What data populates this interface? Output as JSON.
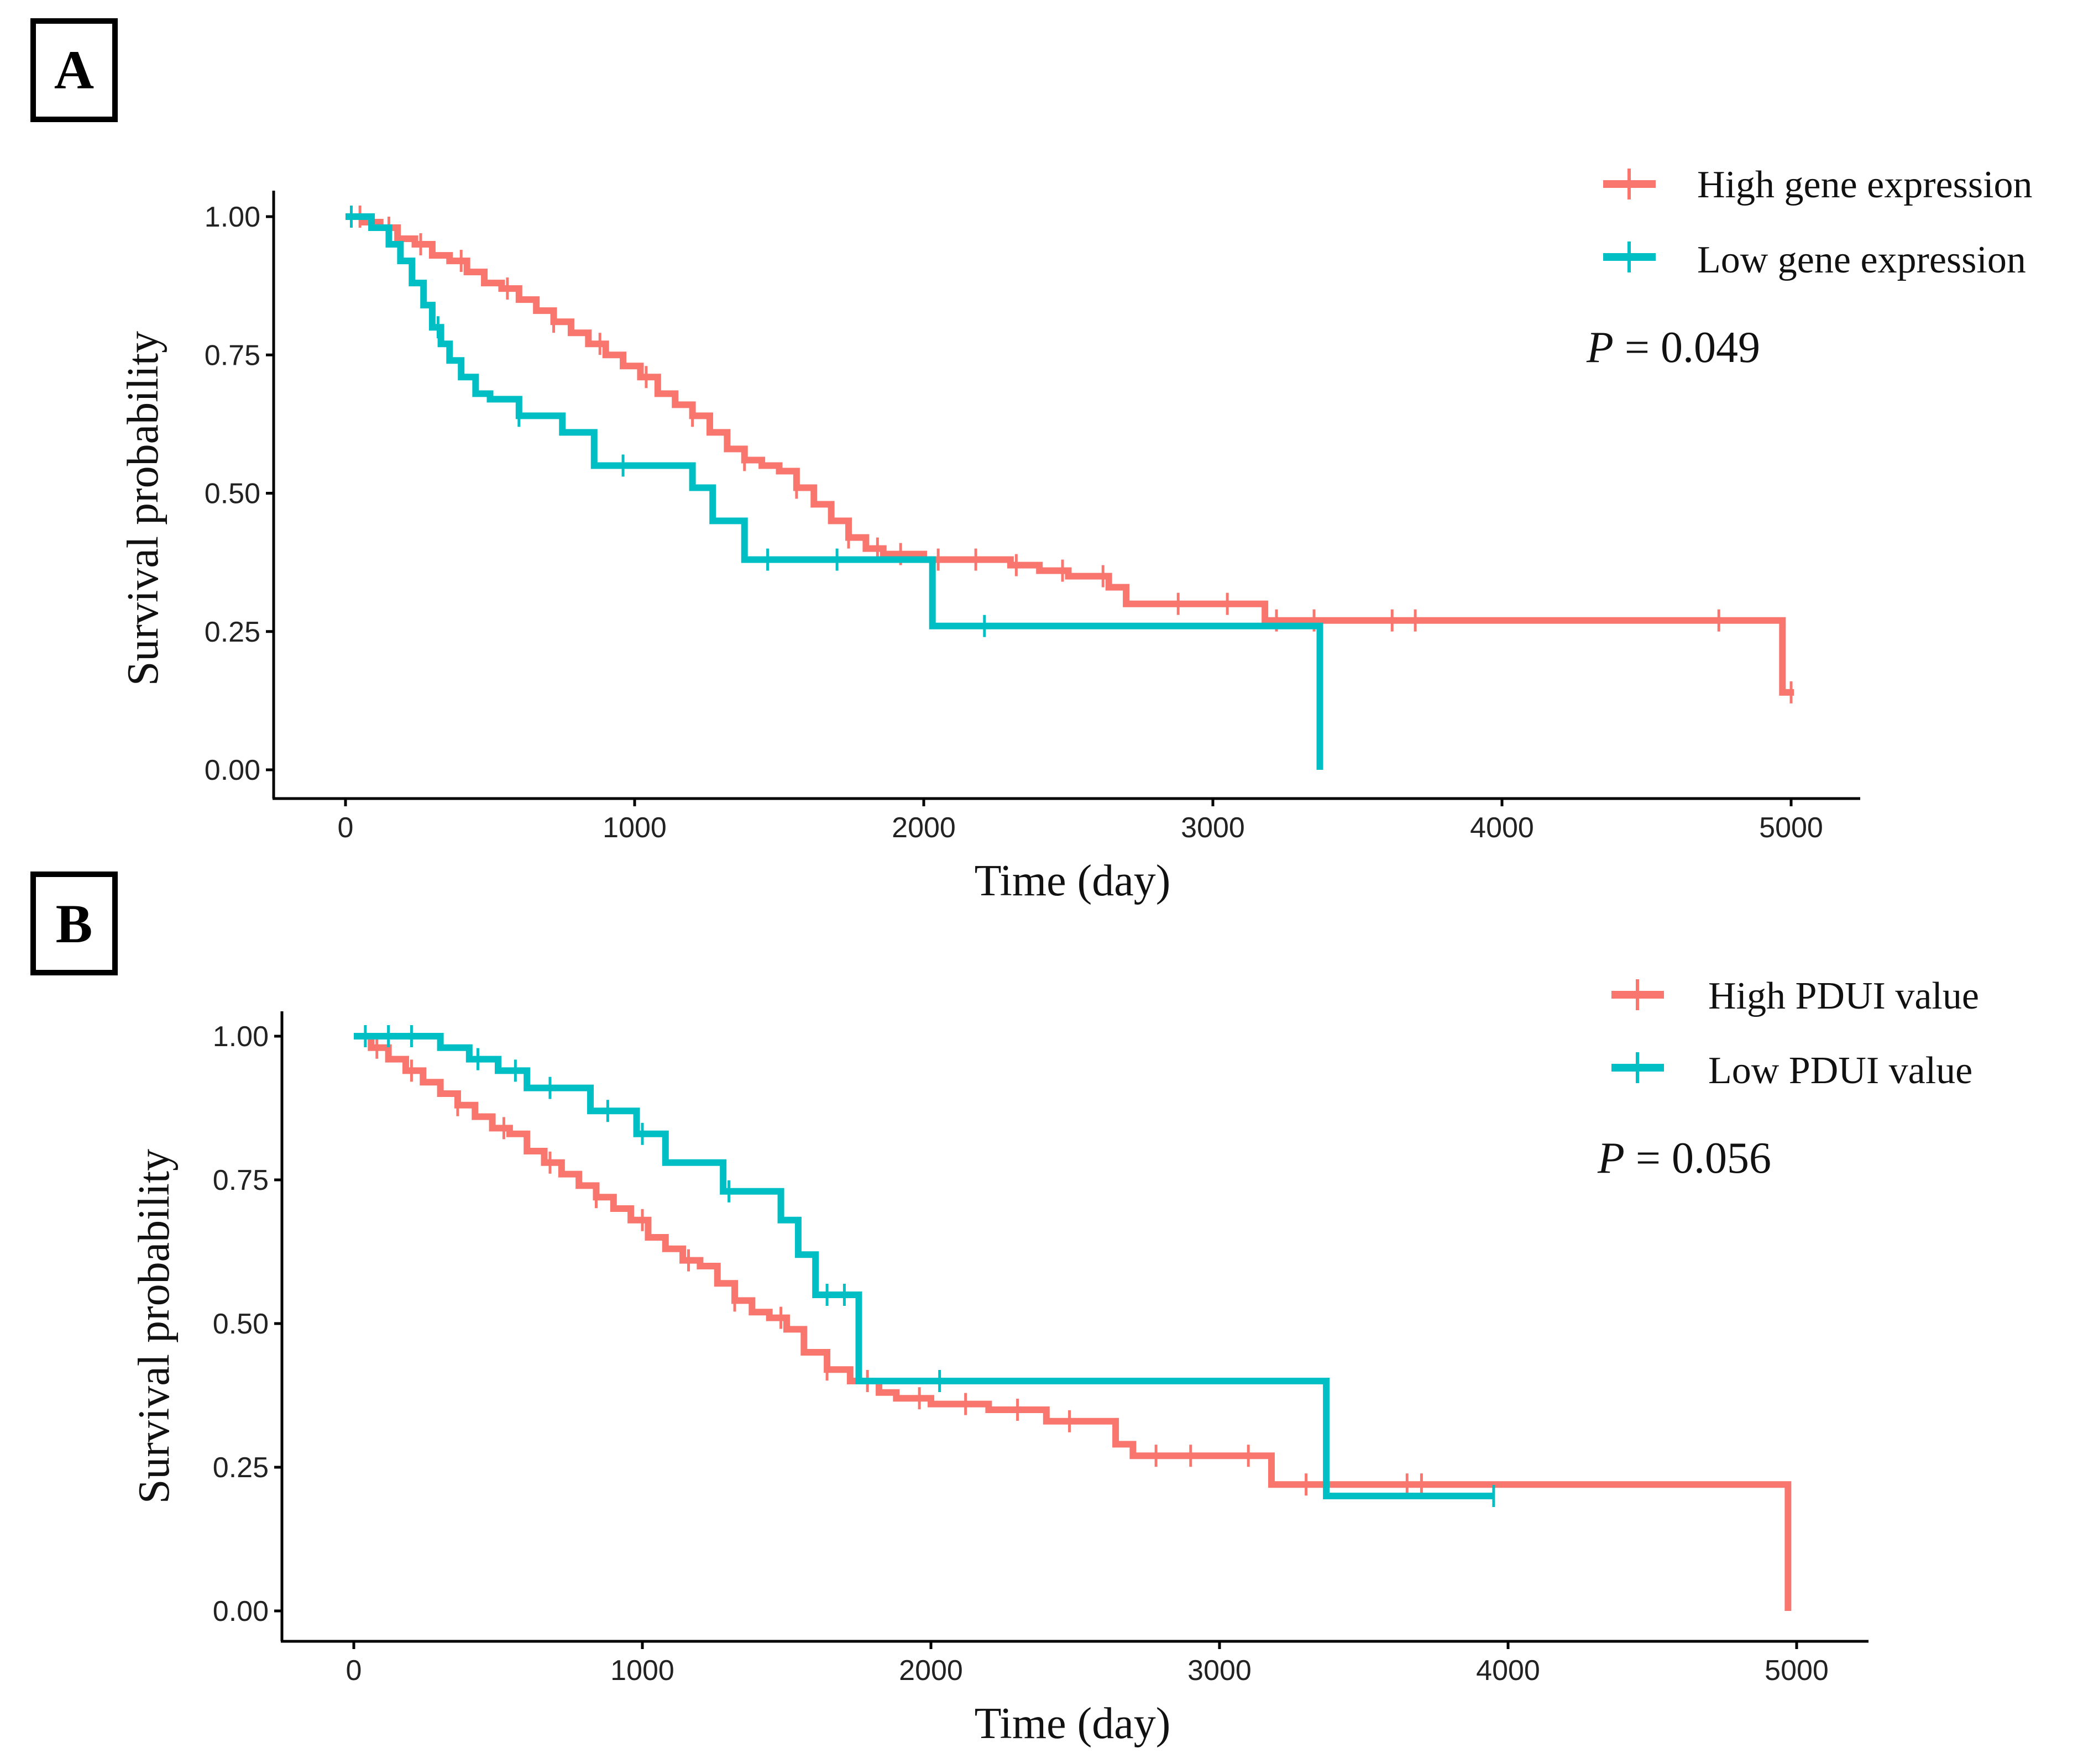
{
  "chart_data": [
    {
      "type": "line",
      "panel_label": "A",
      "xlabel": "Time (day)",
      "ylabel": "Survival probability",
      "xlim": [
        0,
        5000
      ],
      "ylim": [
        0,
        1
      ],
      "xticks": [
        "0",
        "1000",
        "2000",
        "3000",
        "4000",
        "5000"
      ],
      "yticks": [
        "0.00",
        "0.25",
        "0.50",
        "0.75",
        "1.00"
      ],
      "legend_position": "top-right",
      "annotation": {
        "italic": "P",
        "rest": " = 0.049"
      },
      "series": [
        {
          "name": "High gene expression",
          "color": "#F8766D",
          "steps": [
            [
              0,
              1.0
            ],
            [
              60,
              0.99
            ],
            [
              120,
              0.98
            ],
            [
              180,
              0.96
            ],
            [
              240,
              0.95
            ],
            [
              300,
              0.93
            ],
            [
              360,
              0.92
            ],
            [
              420,
              0.9
            ],
            [
              480,
              0.88
            ],
            [
              540,
              0.87
            ],
            [
              600,
              0.85
            ],
            [
              660,
              0.83
            ],
            [
              720,
              0.81
            ],
            [
              780,
              0.79
            ],
            [
              840,
              0.77
            ],
            [
              900,
              0.75
            ],
            [
              960,
              0.73
            ],
            [
              1020,
              0.71
            ],
            [
              1080,
              0.68
            ],
            [
              1140,
              0.66
            ],
            [
              1200,
              0.64
            ],
            [
              1260,
              0.61
            ],
            [
              1320,
              0.58
            ],
            [
              1380,
              0.56
            ],
            [
              1440,
              0.55
            ],
            [
              1500,
              0.54
            ],
            [
              1560,
              0.51
            ],
            [
              1620,
              0.48
            ],
            [
              1680,
              0.45
            ],
            [
              1740,
              0.42
            ],
            [
              1800,
              0.4
            ],
            [
              1860,
              0.39
            ],
            [
              2000,
              0.38
            ],
            [
              2300,
              0.37
            ],
            [
              2400,
              0.36
            ],
            [
              2500,
              0.35
            ],
            [
              2640,
              0.33
            ],
            [
              2700,
              0.3
            ],
            [
              3180,
              0.27
            ],
            [
              4970,
              0.14
            ],
            [
              5010,
              0.14
            ]
          ],
          "censor_x": [
            50,
            150,
            260,
            400,
            560,
            720,
            880,
            1040,
            1200,
            1380,
            1560,
            1740,
            1840,
            1920,
            2050,
            2180,
            2320,
            2480,
            2620,
            2880,
            3050,
            3220,
            3350,
            3620,
            3700,
            4750,
            5000
          ]
        },
        {
          "name": "Low gene expression",
          "color": "#00BFC4",
          "steps": [
            [
              0,
              1.0
            ],
            [
              90,
              0.98
            ],
            [
              150,
              0.95
            ],
            [
              190,
              0.92
            ],
            [
              230,
              0.88
            ],
            [
              270,
              0.84
            ],
            [
              300,
              0.8
            ],
            [
              330,
              0.77
            ],
            [
              360,
              0.74
            ],
            [
              400,
              0.71
            ],
            [
              450,
              0.68
            ],
            [
              500,
              0.67
            ],
            [
              600,
              0.64
            ],
            [
              750,
              0.61
            ],
            [
              860,
              0.55
            ],
            [
              1200,
              0.51
            ],
            [
              1270,
              0.45
            ],
            [
              1380,
              0.38
            ],
            [
              2030,
              0.26
            ],
            [
              3370,
              0.0
            ]
          ],
          "censor_x": [
            20,
            320,
            600,
            960,
            1460,
            1700,
            2210
          ]
        }
      ]
    },
    {
      "type": "line",
      "panel_label": "B",
      "xlabel": "Time (day)",
      "ylabel": "Survival probability",
      "xlim": [
        0,
        5000
      ],
      "ylim": [
        0,
        1
      ],
      "xticks": [
        "0",
        "1000",
        "2000",
        "3000",
        "4000",
        "5000"
      ],
      "yticks": [
        "0.00",
        "0.25",
        "0.50",
        "0.75",
        "1.00"
      ],
      "legend_position": "top-right",
      "annotation": {
        "italic": "P",
        "rest": " = 0.056"
      },
      "series": [
        {
          "name": "High PDUI value",
          "color": "#F8766D",
          "steps": [
            [
              0,
              1.0
            ],
            [
              60,
              0.98
            ],
            [
              120,
              0.96
            ],
            [
              180,
              0.94
            ],
            [
              240,
              0.92
            ],
            [
              300,
              0.9
            ],
            [
              360,
              0.88
            ],
            [
              420,
              0.86
            ],
            [
              480,
              0.84
            ],
            [
              540,
              0.83
            ],
            [
              600,
              0.8
            ],
            [
              660,
              0.78
            ],
            [
              720,
              0.76
            ],
            [
              780,
              0.74
            ],
            [
              840,
              0.72
            ],
            [
              900,
              0.7
            ],
            [
              960,
              0.68
            ],
            [
              1020,
              0.65
            ],
            [
              1080,
              0.63
            ],
            [
              1140,
              0.61
            ],
            [
              1200,
              0.6
            ],
            [
              1260,
              0.57
            ],
            [
              1320,
              0.54
            ],
            [
              1380,
              0.52
            ],
            [
              1440,
              0.51
            ],
            [
              1500,
              0.49
            ],
            [
              1560,
              0.45
            ],
            [
              1640,
              0.42
            ],
            [
              1720,
              0.4
            ],
            [
              1820,
              0.38
            ],
            [
              1880,
              0.37
            ],
            [
              2000,
              0.36
            ],
            [
              2200,
              0.35
            ],
            [
              2400,
              0.33
            ],
            [
              2640,
              0.29
            ],
            [
              2700,
              0.27
            ],
            [
              3180,
              0.22
            ],
            [
              4970,
              0.0
            ]
          ],
          "censor_x": [
            80,
            200,
            360,
            520,
            680,
            840,
            1000,
            1160,
            1320,
            1480,
            1640,
            1780,
            1960,
            2120,
            2300,
            2480,
            2780,
            2900,
            3100,
            3300,
            3650,
            3700
          ]
        },
        {
          "name": "Low PDUI value",
          "color": "#00BFC4",
          "steps": [
            [
              0,
              1.0
            ],
            [
              300,
              0.98
            ],
            [
              400,
              0.96
            ],
            [
              500,
              0.94
            ],
            [
              600,
              0.91
            ],
            [
              820,
              0.87
            ],
            [
              980,
              0.83
            ],
            [
              1080,
              0.78
            ],
            [
              1280,
              0.73
            ],
            [
              1480,
              0.68
            ],
            [
              1540,
              0.62
            ],
            [
              1600,
              0.55
            ],
            [
              1750,
              0.4
            ],
            [
              3370,
              0.2
            ],
            [
              3950,
              0.2
            ]
          ],
          "censor_x": [
            40,
            120,
            200,
            430,
            560,
            680,
            880,
            1000,
            1300,
            1640,
            1700,
            2030,
            3950
          ]
        }
      ]
    }
  ]
}
